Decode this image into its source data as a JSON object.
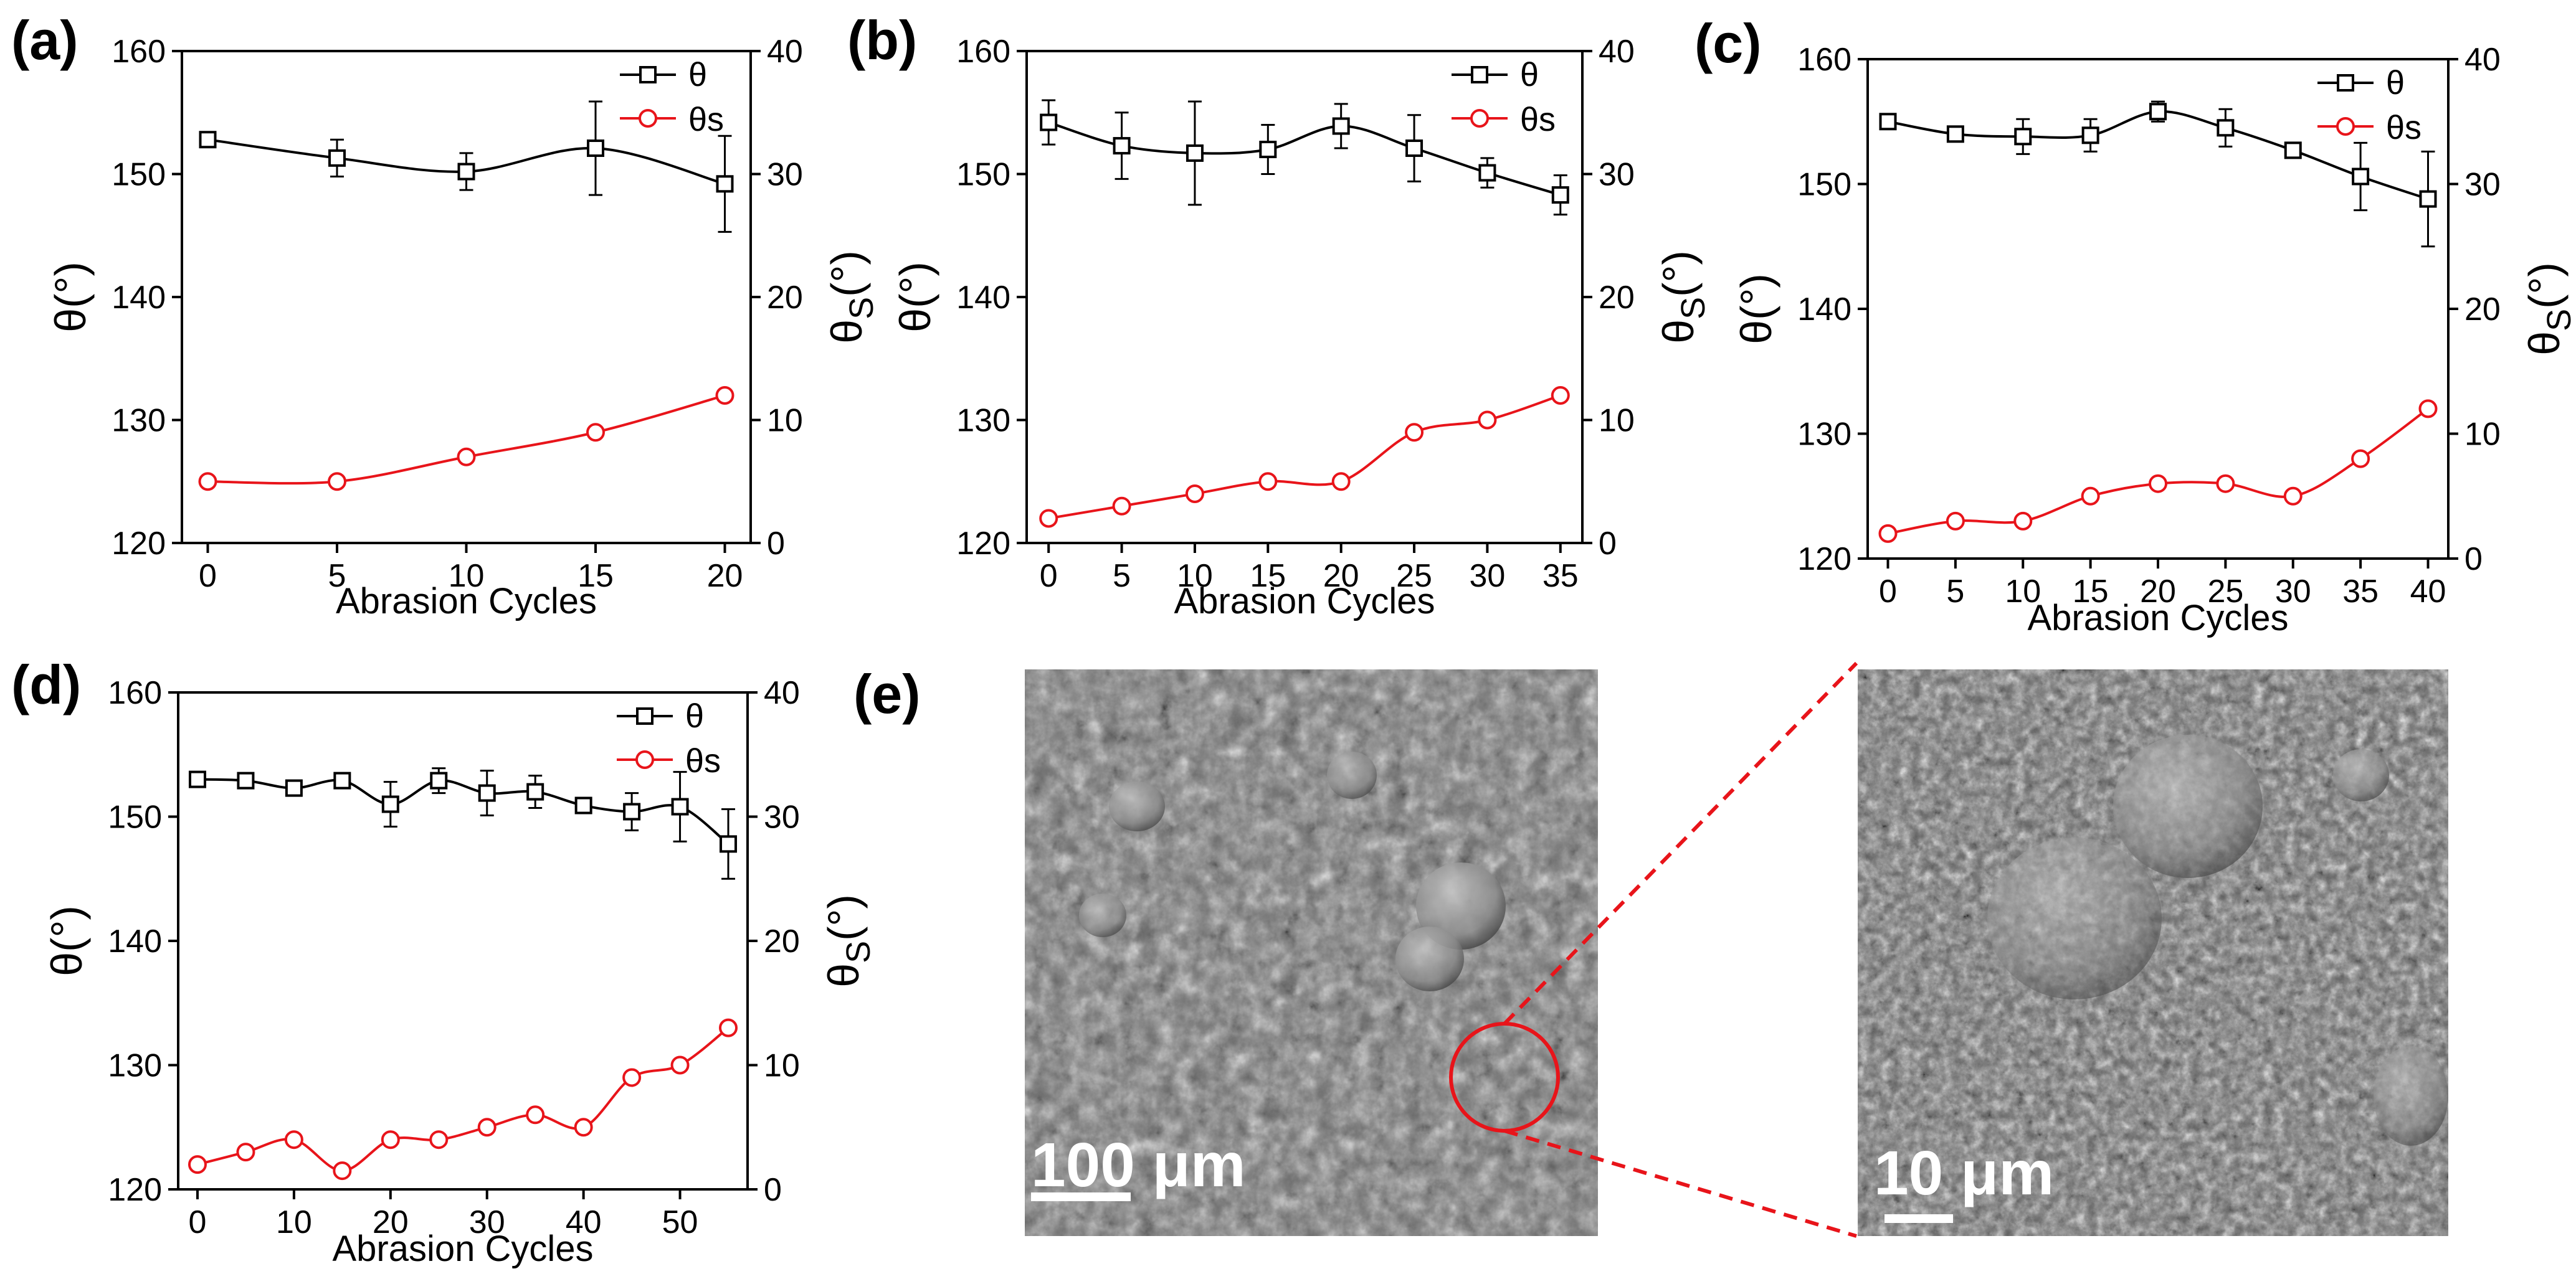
{
  "colors": {
    "theta": "#000000",
    "theta_s": "#e8141a",
    "zoom": "#e8141a"
  },
  "chart_data": [
    {
      "panel": "(a)",
      "type": "line",
      "xlabel": "Abrasion Cycles",
      "ylabel": "θ(°)",
      "y2label_main": "θ",
      "y2label_sub": "S",
      "y2label_tail": "(°)",
      "x": [
        0,
        5,
        10,
        15,
        20
      ],
      "xticks": [
        0,
        5,
        10,
        15,
        20
      ],
      "xlim": [
        -1,
        21
      ],
      "ylim": [
        120,
        160
      ],
      "yticks": [
        120,
        130,
        140,
        150,
        160
      ],
      "y2lim": [
        0,
        40
      ],
      "y2ticks": [
        0,
        10,
        20,
        30,
        40
      ],
      "series": [
        {
          "name": "θ",
          "axis": "left",
          "marker": "square",
          "values": [
            152.8,
            151.3,
            150.2,
            152.1,
            149.2
          ],
          "errors": [
            0.6,
            1.5,
            1.5,
            3.8,
            3.9
          ]
        },
        {
          "name": "θS",
          "axis": "right",
          "marker": "circle",
          "values": [
            5,
            5,
            7,
            9,
            12
          ]
        }
      ],
      "legend": [
        "θ",
        "θs"
      ]
    },
    {
      "panel": "(b)",
      "type": "line",
      "xlabel": "Abrasion Cycles",
      "ylabel": "θ(°)",
      "y2label_main": "θ",
      "y2label_sub": "S",
      "y2label_tail": "(°)",
      "x": [
        0,
        5,
        10,
        15,
        20,
        25,
        30,
        35
      ],
      "xticks": [
        0,
        5,
        10,
        15,
        20,
        25,
        30,
        35
      ],
      "xlim": [
        -1.5,
        36.5
      ],
      "ylim": [
        120,
        160
      ],
      "yticks": [
        120,
        130,
        140,
        150,
        160
      ],
      "y2lim": [
        0,
        40
      ],
      "y2ticks": [
        0,
        10,
        20,
        30,
        40
      ],
      "series": [
        {
          "name": "θ",
          "axis": "left",
          "marker": "square",
          "values": [
            154.2,
            152.3,
            151.7,
            152.0,
            153.9,
            152.1,
            150.1,
            148.3
          ],
          "errors": [
            1.8,
            2.7,
            4.2,
            2.0,
            1.8,
            2.7,
            1.2,
            1.6
          ]
        },
        {
          "name": "θS",
          "axis": "right",
          "marker": "circle",
          "values": [
            2,
            3,
            4,
            5,
            5,
            9,
            10,
            12
          ]
        }
      ],
      "legend": [
        "θ",
        "θs"
      ]
    },
    {
      "panel": "(c)",
      "type": "line",
      "xlabel": "Abrasion Cycles",
      "ylabel": "θ(°)",
      "y2label_main": "θ",
      "y2label_sub": "S",
      "y2label_tail": "(°)",
      "x": [
        0,
        5,
        10,
        15,
        20,
        25,
        30,
        35,
        40
      ],
      "xticks": [
        0,
        5,
        10,
        15,
        20,
        25,
        30,
        35,
        40
      ],
      "xlim": [
        -1.5,
        41.5
      ],
      "ylim": [
        120,
        160
      ],
      "yticks": [
        120,
        130,
        140,
        150,
        160
      ],
      "y2lim": [
        0,
        40
      ],
      "y2ticks": [
        0,
        10,
        20,
        30,
        40
      ],
      "series": [
        {
          "name": "θ",
          "axis": "left",
          "marker": "square",
          "values": [
            155.0,
            154.0,
            153.8,
            153.9,
            155.8,
            154.5,
            152.7,
            150.6,
            148.8
          ],
          "errors": [
            0.4,
            0.4,
            1.4,
            1.3,
            0.8,
            1.5,
            0.5,
            2.7,
            3.8
          ]
        },
        {
          "name": "θS",
          "axis": "right",
          "marker": "circle",
          "values": [
            2,
            3,
            3,
            5,
            6,
            6,
            5,
            8,
            12
          ]
        }
      ],
      "legend": [
        "θ",
        "θs"
      ]
    },
    {
      "panel": "(d)",
      "type": "line",
      "xlabel": "Abrasion Cycles",
      "ylabel": "θ(°)",
      "y2label_main": "θ",
      "y2label_sub": "S",
      "y2label_tail": "(°)",
      "x": [
        0,
        5,
        10,
        15,
        20,
        25,
        30,
        35,
        40,
        45,
        50,
        55
      ],
      "xticks": [
        0,
        10,
        20,
        30,
        40,
        50
      ],
      "xlim": [
        -2,
        57
      ],
      "ylim": [
        120,
        160
      ],
      "yticks": [
        120,
        130,
        140,
        150,
        160
      ],
      "y2lim": [
        0,
        40
      ],
      "y2ticks": [
        0,
        10,
        20,
        30,
        40
      ],
      "series": [
        {
          "name": "θ",
          "axis": "left",
          "marker": "square",
          "values": [
            153.0,
            152.9,
            152.3,
            152.9,
            151.0,
            152.9,
            151.9,
            152.0,
            150.9,
            150.4,
            150.8,
            147.8
          ],
          "errors": [
            0.3,
            0.3,
            0.4,
            0.3,
            1.8,
            1.0,
            1.8,
            1.3,
            0.4,
            1.5,
            2.8,
            2.8
          ]
        },
        {
          "name": "θS",
          "axis": "right",
          "marker": "circle",
          "values": [
            2,
            3,
            4,
            1.5,
            4,
            4,
            5,
            6,
            5,
            9,
            10,
            13
          ]
        }
      ],
      "legend": [
        "θ",
        "θs"
      ]
    }
  ],
  "sem": {
    "panel": "(e)",
    "left_scale": "100 μm",
    "right_scale": "10 μm"
  }
}
